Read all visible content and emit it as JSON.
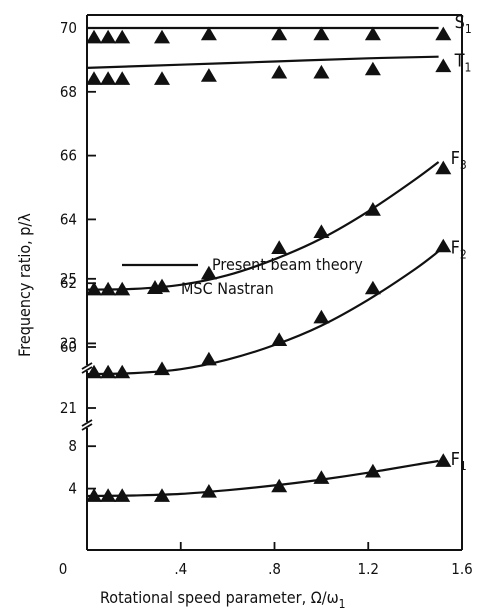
{
  "chart_data": {
    "type": "line",
    "xlabel": "Rotational speed parameter, Ω/ω",
    "xlabel_sub": "1",
    "ylabel": "Frequency ratio, p/λ",
    "xlim": [
      0,
      1.6
    ],
    "x_ticks": [
      {
        "value": 0,
        "label": "0"
      },
      {
        "value": 0.4,
        "label": ".4"
      },
      {
        "value": 0.8,
        "label": ".8"
      },
      {
        "value": 1.2,
        "label": "1.2"
      },
      {
        "value": 1.6,
        "label": "1.6"
      }
    ],
    "y_segments": [
      {
        "name": "upper",
        "range": [
          60,
          70
        ],
        "ticks": [
          60,
          62,
          64,
          66,
          68,
          70
        ]
      },
      {
        "name": "middle",
        "range": [
          21,
          25
        ],
        "ticks": [
          21,
          23,
          25
        ]
      },
      {
        "name": "lower",
        "range": [
          0,
          8
        ],
        "ticks": [
          4,
          8
        ]
      }
    ],
    "legend": [
      {
        "marker": "line",
        "label": "Present beam theory"
      },
      {
        "marker": "triangle",
        "label": "MSC Nastran"
      }
    ],
    "series": [
      {
        "name": "S",
        "sub": "1",
        "segment": "upper",
        "theory": {
          "x": [
            0,
            0.4,
            0.8,
            1.2,
            1.5
          ],
          "y": [
            70.0,
            70.0,
            70.0,
            70.0,
            70.0
          ]
        },
        "nastran": {
          "x": [
            0.03,
            0.09,
            0.15,
            0.32,
            0.52,
            0.82,
            1.0,
            1.22,
            1.52
          ],
          "y": [
            69.7,
            69.7,
            69.7,
            69.7,
            69.8,
            69.8,
            69.8,
            69.8,
            69.8
          ]
        }
      },
      {
        "name": "T",
        "sub": "1",
        "segment": "upper",
        "theory": {
          "x": [
            0,
            0.4,
            0.8,
            1.2,
            1.5
          ],
          "y": [
            68.75,
            68.85,
            68.95,
            69.05,
            69.1
          ]
        },
        "nastran": {
          "x": [
            0.03,
            0.09,
            0.15,
            0.32,
            0.52,
            0.82,
            1.0,
            1.22,
            1.52
          ],
          "y": [
            68.4,
            68.4,
            68.4,
            68.4,
            68.5,
            68.6,
            68.6,
            68.7,
            68.8
          ]
        }
      },
      {
        "name": "F",
        "sub": "3",
        "segment": "upper",
        "theory": {
          "x": [
            0,
            0.2,
            0.4,
            0.6,
            0.8,
            1.0,
            1.2,
            1.4,
            1.5
          ],
          "y": [
            61.8,
            61.82,
            61.95,
            62.25,
            62.75,
            63.4,
            64.25,
            65.25,
            65.8
          ]
        },
        "nastran": {
          "x": [
            0.03,
            0.09,
            0.15,
            0.32,
            0.52,
            0.82,
            1.0,
            1.22,
            1.52
          ],
          "y": [
            61.8,
            61.8,
            61.8,
            61.9,
            62.3,
            63.1,
            63.6,
            64.3,
            65.6
          ]
        }
      },
      {
        "name": "F",
        "sub": "2",
        "segment": "middle",
        "theory": {
          "x": [
            0,
            0.2,
            0.4,
            0.6,
            0.8,
            1.0,
            1.2,
            1.4,
            1.5
          ],
          "y": [
            22.05,
            22.08,
            22.2,
            22.5,
            22.95,
            23.55,
            24.35,
            25.3,
            25.85
          ]
        },
        "nastran": {
          "x": [
            0.03,
            0.09,
            0.15,
            0.32,
            0.52,
            0.82,
            1.0,
            1.22,
            1.52
          ],
          "y": [
            22.1,
            22.1,
            22.1,
            22.2,
            22.5,
            23.1,
            23.8,
            24.7,
            26.0
          ]
        }
      },
      {
        "name": "F",
        "sub": "1",
        "segment": "lower",
        "theory": {
          "x": [
            0,
            0.2,
            0.4,
            0.6,
            0.8,
            1.0,
            1.2,
            1.4,
            1.5
          ],
          "y": [
            3.3,
            3.35,
            3.5,
            3.85,
            4.3,
            4.85,
            5.5,
            6.25,
            6.6
          ]
        },
        "nastran": {
          "x": [
            0.03,
            0.09,
            0.15,
            0.32,
            0.52,
            0.82,
            1.0,
            1.22,
            1.52
          ],
          "y": [
            3.3,
            3.3,
            3.3,
            3.3,
            3.7,
            4.2,
            5.0,
            5.6,
            6.6
          ]
        }
      }
    ]
  }
}
